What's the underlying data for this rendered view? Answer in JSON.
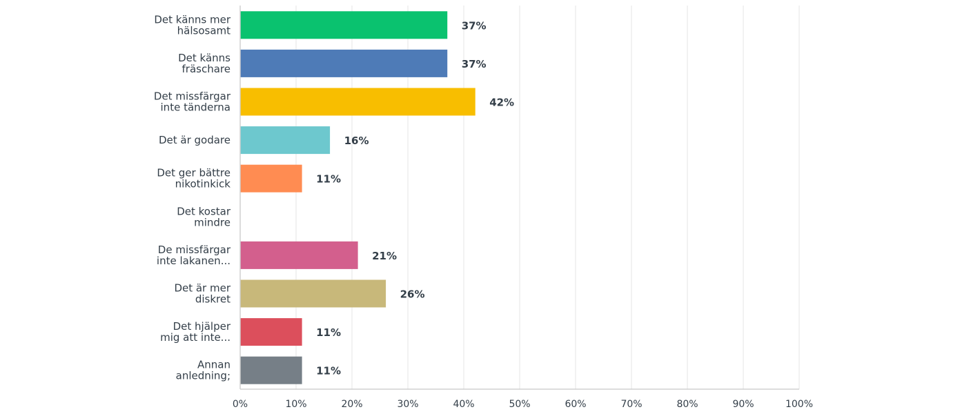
{
  "chart_data": {
    "type": "bar",
    "orientation": "horizontal",
    "title": "",
    "xlabel": "",
    "ylabel": "",
    "xlim": [
      0,
      100
    ],
    "categories": [
      [
        "Det känns mer",
        "hälsosamt"
      ],
      [
        "Det känns",
        "fräschare"
      ],
      [
        "Det missfärgar",
        "inte tänderna"
      ],
      [
        "Det är godare"
      ],
      [
        "Det ger bättre",
        "nikotinkick"
      ],
      [
        "Det kostar",
        "mindre"
      ],
      [
        "De missfärgar",
        "inte lakanen..."
      ],
      [
        "Det är mer",
        "diskret"
      ],
      [
        "Det hjälper",
        "mig att inte..."
      ],
      [
        "Annan",
        "anledning;"
      ]
    ],
    "values": [
      37,
      37,
      42,
      16,
      11,
      null,
      21,
      26,
      11,
      11
    ],
    "value_labels": [
      "37%",
      "37%",
      "42%",
      "16%",
      "11%",
      "",
      "21%",
      "26%",
      "11%",
      "11%"
    ],
    "colors": [
      "#0ac26f",
      "#4e7bb7",
      "#f8be00",
      "#6dc8ce",
      "#ff8c52",
      "#b3b3b3",
      "#d35f8d",
      "#c8b87a",
      "#dc4f5c",
      "#767f87"
    ],
    "ticks": [
      0,
      10,
      20,
      30,
      40,
      50,
      60,
      70,
      80,
      90,
      100
    ],
    "tick_labels": [
      "0%",
      "10%",
      "20%",
      "30%",
      "40%",
      "50%",
      "60%",
      "70%",
      "80%",
      "90%",
      "100%"
    ],
    "grid": true
  }
}
